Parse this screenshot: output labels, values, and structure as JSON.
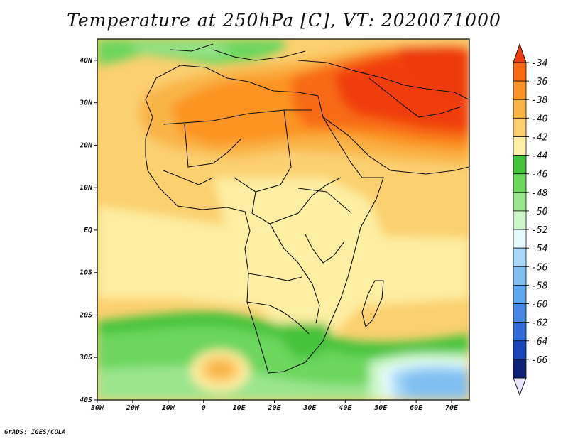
{
  "title": "Temperature at 250hPa [C], VT: 2020071000",
  "credit": "GrADS: IGES/COLA",
  "lat_labels": [
    "40N",
    "30N",
    "20N",
    "10N",
    "EQ",
    "10S",
    "20S",
    "30S",
    "40S"
  ],
  "lon_labels": [
    "30W",
    "20W",
    "10W",
    "0",
    "10E",
    "20E",
    "30E",
    "40E",
    "50E",
    "60E",
    "70E"
  ],
  "colorbar": {
    "labels": [
      "-34",
      "-36",
      "-38",
      "-40",
      "-42",
      "-44",
      "-46",
      "-48",
      "-50",
      "-52",
      "-54",
      "-56",
      "-58",
      "-60",
      "-62",
      "-64",
      "-66"
    ],
    "colors": [
      "#f03c0f",
      "#f86a12",
      "#fb9424",
      "#f9b446",
      "#fbd06f",
      "#fdeea3",
      "#45c33a",
      "#6cd65d",
      "#9be58f",
      "#ccf7c6",
      "#e4fafc",
      "#a7d8f7",
      "#81bff1",
      "#5ea6ee",
      "#4687e4",
      "#2f6ad7",
      "#1a45b8",
      "#0b1f76"
    ]
  },
  "map": {
    "lon_range": [
      -30,
      75
    ],
    "lat_range": [
      -40,
      45
    ],
    "field": "temperature",
    "units": "C",
    "level": "250hPa"
  }
}
